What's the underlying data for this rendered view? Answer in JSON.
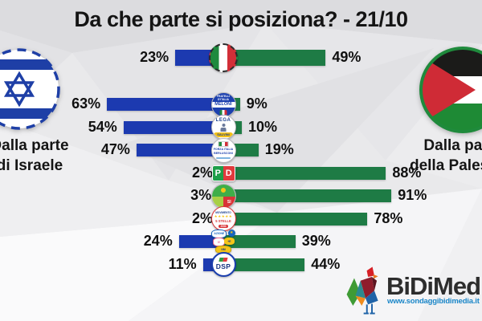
{
  "title": "Da che parte si posiziona? - 21/10",
  "left_side": {
    "line1": "Dalla parte",
    "line2": "di Israele",
    "icon": "israel-flag-icon"
  },
  "right_side": {
    "line1": "Dalla parte",
    "line2": "della Palestina",
    "icon": "palestine-flag-icon"
  },
  "colors": {
    "israele_bar": "#1c3ab0",
    "palestina_bar": "#1e7b45",
    "title_text": "#141414",
    "israel_flag_blue": "#1e3fa6",
    "palestine_green": "#1e8a35",
    "palestine_red": "#cf2b36",
    "brand_url_blue": "#1a86c8"
  },
  "rows": [
    {
      "party": "Italia",
      "logo": "italy-flag-icon",
      "israele": 23,
      "palestina": 49,
      "israele_label": "23%",
      "palestina_label": "49%"
    },
    {
      "party": "Fratelli d'Italia (Meloni)",
      "logo": "fdi-logo-icon",
      "israele": 63,
      "palestina": 9,
      "israele_label": "63%",
      "palestina_label": "9%"
    },
    {
      "party": "Lega (Salvini)",
      "logo": "lega-logo-icon",
      "israele": 54,
      "palestina": 10,
      "israele_label": "54%",
      "palestina_label": "10%"
    },
    {
      "party": "Forza Italia (Berlusconi)",
      "logo": "fi-logo-icon",
      "israele": 47,
      "palestina": 19,
      "israele_label": "47%",
      "palestina_label": "19%"
    },
    {
      "party": "Partito Democratico",
      "logo": "pd-logo-icon",
      "israele": 2,
      "palestina": 88,
      "israele_label": "2%",
      "palestina_label": "88%"
    },
    {
      "party": "Alleanza Verdi e Sinistra",
      "logo": "avs-logo-icon",
      "israele": 3,
      "palestina": 91,
      "israele_label": "3%",
      "palestina_label": "91%"
    },
    {
      "party": "Movimento 5 Stelle",
      "logo": "m5s-logo-icon",
      "israele": 2,
      "palestina": 78,
      "israele_label": "2%",
      "palestina_label": "78%"
    },
    {
      "party": "Azione / Italia Viva / +Europa",
      "logo": "centristi-logos-icon",
      "israele": 24,
      "palestina": 39,
      "israele_label": "24%",
      "palestina_label": "39%"
    },
    {
      "party": "DSP",
      "logo": "dsp-logo-icon",
      "israele": 11,
      "palestina": 44,
      "israele_label": "11%",
      "palestina_label": "44%"
    }
  ],
  "branding": {
    "name": "BiDiMedia",
    "url": "www.sondaggibidimedia.it",
    "icon": "bidimedia-rooster-icon"
  },
  "chart_data": {
    "type": "bar",
    "orientation": "diverging-horizontal",
    "title": "Da che parte si posiziona? - 21/10",
    "categories": [
      "Italia",
      "Fratelli d'Italia",
      "Lega",
      "Forza Italia",
      "Partito Democratico",
      "Alleanza Verdi e Sinistra",
      "Movimento 5 Stelle",
      "Azione / Italia Viva / +Europa",
      "DSP"
    ],
    "series": [
      {
        "name": "Dalla parte di Israele",
        "color": "#1c3ab0",
        "values": [
          23,
          63,
          54,
          47,
          2,
          3,
          2,
          24,
          11
        ]
      },
      {
        "name": "Dalla parte della Palestina",
        "color": "#1e7b45",
        "values": [
          49,
          9,
          10,
          19,
          88,
          91,
          78,
          39,
          44
        ]
      }
    ],
    "unit": "%",
    "value_labels": true,
    "grid": false,
    "legend_position": "sides (flag badges left = Israele, right = Palestina)"
  }
}
